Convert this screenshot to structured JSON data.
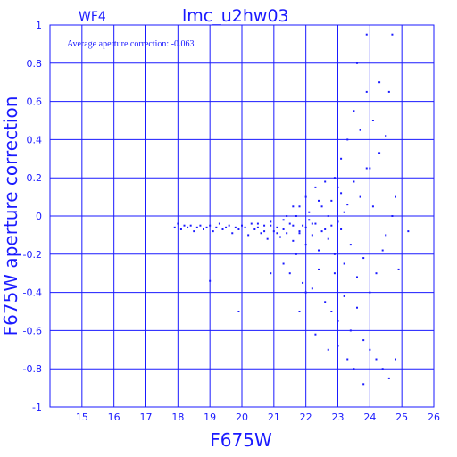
{
  "chart_data": {
    "type": "scatter",
    "title": "lmc_u2hw03",
    "subtitle": "WF4",
    "annotation": "Average aperture correction: -0.063",
    "xlabel": "F675W",
    "ylabel": "F675W aperture correction",
    "xlim": [
      14,
      26
    ],
    "ylim": [
      -1,
      1
    ],
    "x_ticks": [
      "15",
      "16",
      "17",
      "18",
      "19",
      "20",
      "21",
      "22",
      "23",
      "24",
      "25",
      "26"
    ],
    "y_ticks": [
      "-1",
      "-0.8",
      "-0.6",
      "-0.4",
      "-0.2",
      "0",
      "0.2",
      "0.4",
      "0.6",
      "0.8",
      "1"
    ],
    "grid": true,
    "average_line": -0.063,
    "colors": {
      "axis": "#1a1aff",
      "points": "#1a1aff",
      "average_line": "#ff0000"
    },
    "points": [
      [
        17.9,
        -0.06
      ],
      [
        18.0,
        -0.04
      ],
      [
        18.1,
        -0.07
      ],
      [
        18.2,
        -0.05
      ],
      [
        18.3,
        -0.06
      ],
      [
        18.4,
        -0.05
      ],
      [
        18.5,
        -0.08
      ],
      [
        18.6,
        -0.06
      ],
      [
        18.7,
        -0.05
      ],
      [
        18.8,
        -0.07
      ],
      [
        18.9,
        -0.06
      ],
      [
        19.0,
        -0.05
      ],
      [
        19.1,
        -0.08
      ],
      [
        19.2,
        -0.06
      ],
      [
        19.3,
        -0.04
      ],
      [
        19.4,
        -0.07
      ],
      [
        19.5,
        -0.06
      ],
      [
        19.6,
        -0.05
      ],
      [
        19.7,
        -0.09
      ],
      [
        19.8,
        -0.06
      ],
      [
        19.9,
        -0.07
      ],
      [
        20.0,
        -0.05
      ],
      [
        20.1,
        -0.06
      ],
      [
        20.2,
        -0.1
      ],
      [
        20.3,
        -0.04
      ],
      [
        20.4,
        -0.07
      ],
      [
        20.5,
        -0.06
      ],
      [
        20.6,
        -0.09
      ],
      [
        20.7,
        -0.05
      ],
      [
        20.8,
        -0.12
      ],
      [
        20.9,
        -0.03
      ],
      [
        21.0,
        -0.08
      ],
      [
        21.1,
        -0.06
      ],
      [
        21.2,
        -0.11
      ],
      [
        21.3,
        -0.02
      ],
      [
        21.4,
        -0.09
      ],
      [
        21.5,
        -0.04
      ],
      [
        21.6,
        -0.13
      ],
      [
        21.7,
        0.0
      ],
      [
        21.8,
        -0.08
      ],
      [
        21.9,
        -0.05
      ],
      [
        22.0,
        -0.15
      ],
      [
        22.1,
        0.02
      ],
      [
        22.2,
        -0.1
      ],
      [
        22.3,
        -0.04
      ],
      [
        22.4,
        -0.18
      ],
      [
        22.5,
        0.05
      ],
      [
        22.6,
        -0.07
      ],
      [
        22.7,
        -0.12
      ],
      [
        22.8,
        0.08
      ],
      [
        22.9,
        -0.2
      ],
      [
        23.0,
        -0.03
      ],
      [
        23.1,
        0.12
      ],
      [
        23.2,
        -0.25
      ],
      [
        23.3,
        0.06
      ],
      [
        23.4,
        -0.15
      ],
      [
        23.5,
        0.18
      ],
      [
        23.6,
        -0.32
      ],
      [
        23.7,
        0.1
      ],
      [
        23.8,
        -0.22
      ],
      [
        23.9,
        0.25
      ],
      [
        24.0,
        -0.4
      ],
      [
        24.1,
        0.05
      ],
      [
        24.2,
        -0.3
      ],
      [
        24.3,
        0.33
      ],
      [
        24.4,
        -0.18
      ],
      [
        21.3,
        -0.25
      ],
      [
        21.5,
        -0.3
      ],
      [
        21.7,
        -0.2
      ],
      [
        21.9,
        -0.35
      ],
      [
        22.2,
        -0.38
      ],
      [
        22.4,
        -0.28
      ],
      [
        22.6,
        -0.45
      ],
      [
        22.8,
        -0.5
      ],
      [
        23.0,
        -0.55
      ],
      [
        23.2,
        -0.42
      ],
      [
        23.4,
        -0.6
      ],
      [
        23.6,
        -0.48
      ],
      [
        23.8,
        -0.65
      ],
      [
        24.0,
        -0.7
      ],
      [
        24.2,
        -0.75
      ],
      [
        24.4,
        -0.8
      ],
      [
        24.6,
        -0.85
      ],
      [
        24.8,
        -0.75
      ],
      [
        23.1,
        0.3
      ],
      [
        23.3,
        0.4
      ],
      [
        23.5,
        0.55
      ],
      [
        23.7,
        0.45
      ],
      [
        23.9,
        0.65
      ],
      [
        24.1,
        0.5
      ],
      [
        24.3,
        0.7
      ],
      [
        24.5,
        0.42
      ],
      [
        23.6,
        0.8
      ],
      [
        23.9,
        0.95
      ],
      [
        24.7,
        0.95
      ],
      [
        24.6,
        0.65
      ],
      [
        23.0,
        -0.68
      ],
      [
        23.3,
        -0.75
      ],
      [
        23.5,
        -0.8
      ],
      [
        23.8,
        -0.88
      ],
      [
        22.3,
        -0.62
      ],
      [
        22.7,
        -0.7
      ],
      [
        21.8,
        -0.5
      ],
      [
        20.9,
        -0.3
      ],
      [
        19.0,
        -0.34
      ],
      [
        19.9,
        -0.5
      ],
      [
        22.0,
        -0.4
      ],
      [
        22.9,
        -0.3
      ],
      [
        21.6,
        0.05
      ],
      [
        22.0,
        0.1
      ],
      [
        22.3,
        0.15
      ],
      [
        22.6,
        0.18
      ],
      [
        22.9,
        0.2
      ],
      [
        23.2,
        0.02
      ],
      [
        21.4,
        0.0
      ],
      [
        21.8,
        0.05
      ],
      [
        22.1,
        -0.02
      ],
      [
        22.4,
        0.08
      ],
      [
        22.7,
        0.0
      ],
      [
        23.0,
        0.15
      ],
      [
        24.8,
        0.1
      ],
      [
        25.2,
        -0.08
      ],
      [
        24.5,
        -0.1
      ],
      [
        24.9,
        -0.28
      ],
      [
        24.7,
        0.0
      ],
      [
        24.0,
        0.25
      ],
      [
        20.5,
        -0.04
      ],
      [
        20.7,
        -0.08
      ],
      [
        20.9,
        -0.05
      ],
      [
        21.1,
        -0.09
      ],
      [
        21.3,
        -0.07
      ],
      [
        21.6,
        -0.05
      ],
      [
        21.8,
        -0.09
      ],
      [
        22.0,
        -0.06
      ],
      [
        22.2,
        -0.04
      ],
      [
        22.5,
        -0.08
      ],
      [
        22.8,
        -0.05
      ],
      [
        23.1,
        -0.07
      ]
    ]
  }
}
